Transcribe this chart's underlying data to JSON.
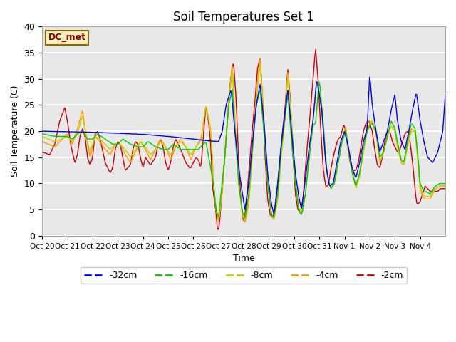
{
  "title": "Soil Temperatures Set 1",
  "xlabel": "Time",
  "ylabel": "Soil Temperature (C)",
  "ylim": [
    0,
    40
  ],
  "background_color": "#e8e8e8",
  "grid_color": "#ffffff",
  "annotation_text": "DC_met",
  "legend_entries": [
    "-32cm",
    "-16cm",
    "-8cm",
    "-4cm",
    "-2cm"
  ],
  "legend_colors": [
    "#0000ff",
    "#00cc00",
    "#cccc00",
    "#ff9900",
    "#cc0000"
  ],
  "x_tick_labels": [
    "Oct 20",
    "Oct 21",
    "Oct 22",
    "Oct 23",
    "Oct 24",
    "Oct 25",
    "Oct 26",
    "Oct 27",
    "Oct 28",
    "Oct 29",
    "Oct 30",
    "Oct 31",
    "Nov 1",
    "Nov 2",
    "Nov 3",
    "Nov 4"
  ]
}
